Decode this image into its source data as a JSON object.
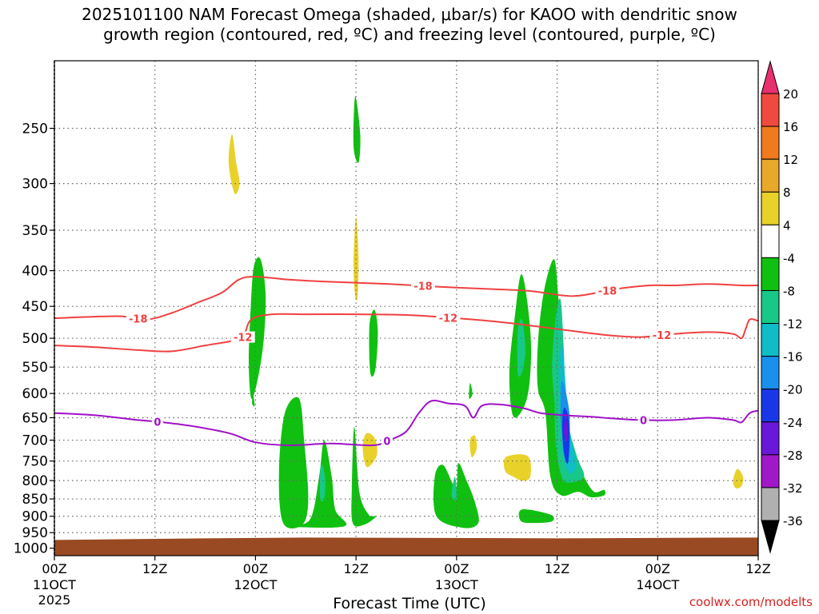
{
  "chart_data": {
    "type": "time-height contour",
    "title_line1": "2025101100 NAM Forecast Omega (shaded, μbar/s) for KAOO with dendritic snow",
    "title_line2": "growth region (contoured, red, ºC) and freezing level (contoured, purple, ºC)",
    "xlabel": "Forecast Time (UTC)",
    "credit": "coolwx.com/modelts",
    "x_ticks": [
      {
        "hour": 0,
        "label": "00Z",
        "date": "11OCT",
        "year": "2025"
      },
      {
        "hour": 12,
        "label": "12Z",
        "date": "",
        "year": ""
      },
      {
        "hour": 24,
        "label": "00Z",
        "date": "12OCT",
        "year": ""
      },
      {
        "hour": 36,
        "label": "12Z",
        "date": "",
        "year": ""
      },
      {
        "hour": 48,
        "label": "00Z",
        "date": "13OCT",
        "year": ""
      },
      {
        "hour": 60,
        "label": "12Z",
        "date": "",
        "year": ""
      },
      {
        "hour": 72,
        "label": "00Z",
        "date": "14OCT",
        "year": ""
      },
      {
        "hour": 84,
        "label": "12Z",
        "date": "",
        "year": ""
      }
    ],
    "x_range": [
      0,
      84
    ],
    "y_levels": [
      250,
      300,
      350,
      400,
      450,
      500,
      550,
      600,
      650,
      700,
      750,
      800,
      850,
      900,
      950,
      1000
    ],
    "y_range_hpa": [
      200,
      1025
    ],
    "ground_level_hpa": 968,
    "colorbar": {
      "labels": [
        "20",
        "16",
        "12",
        "8",
        "4",
        "-4",
        "-8",
        "-12",
        "-16",
        "-20",
        "-24",
        "-28",
        "-32",
        "-36"
      ],
      "colors": [
        "#e8306e",
        "#f04a3e",
        "#f07a1e",
        "#e8a82a",
        "#e8d22a",
        "#ffffff",
        "#10c010",
        "#18c888",
        "#10bcc8",
        "#1890ec",
        "#1838e8",
        "#6818d8",
        "#a018c8",
        "#b0b0b0",
        "#000000"
      ]
    },
    "contours": [
      {
        "name": "-18",
        "color": "#f04040",
        "label_hours": [
          10,
          44,
          66
        ],
        "points": [
          [
            0,
            468
          ],
          [
            4,
            466
          ],
          [
            8,
            465
          ],
          [
            11,
            470
          ],
          [
            14,
            460
          ],
          [
            17,
            445
          ],
          [
            20,
            430
          ],
          [
            22,
            412
          ],
          [
            24,
            408
          ],
          [
            28,
            412
          ],
          [
            33,
            415
          ],
          [
            40,
            418
          ],
          [
            46,
            422
          ],
          [
            52,
            425
          ],
          [
            57,
            428
          ],
          [
            62,
            435
          ],
          [
            67,
            425
          ],
          [
            71,
            420
          ],
          [
            74,
            420
          ],
          [
            78,
            418
          ],
          [
            82,
            420
          ],
          [
            84,
            420
          ]
        ]
      },
      {
        "name": "-12",
        "color": "#f04040",
        "label_hours": [
          22.5,
          47,
          72.5
        ],
        "points": [
          [
            0,
            512
          ],
          [
            5,
            515
          ],
          [
            10,
            520
          ],
          [
            14,
            522
          ],
          [
            18,
            512
          ],
          [
            21,
            505
          ],
          [
            22.5,
            498
          ],
          [
            23.5,
            470
          ],
          [
            26,
            462
          ],
          [
            30,
            462
          ],
          [
            36,
            462
          ],
          [
            42,
            463
          ],
          [
            48,
            468
          ],
          [
            54,
            475
          ],
          [
            60,
            485
          ],
          [
            66,
            495
          ],
          [
            70,
            498
          ],
          [
            74,
            493
          ],
          [
            78,
            490
          ],
          [
            81,
            493
          ],
          [
            82,
            500
          ],
          [
            82.5,
            485
          ],
          [
            83,
            470
          ],
          [
            84,
            472
          ]
        ]
      },
      {
        "name": "0",
        "color": "#a010c8",
        "label_hours": [
          12.3,
          39.7,
          70.3
        ],
        "points": [
          [
            0,
            640
          ],
          [
            5,
            645
          ],
          [
            10,
            655
          ],
          [
            13,
            660
          ],
          [
            17,
            670
          ],
          [
            21,
            685
          ],
          [
            24,
            705
          ],
          [
            28,
            712
          ],
          [
            33,
            708
          ],
          [
            38,
            712
          ],
          [
            40,
            700
          ],
          [
            42,
            680
          ],
          [
            43.5,
            640
          ],
          [
            45,
            615
          ],
          [
            47,
            620
          ],
          [
            49,
            625
          ],
          [
            50,
            650
          ],
          [
            51,
            625
          ],
          [
            53,
            622
          ],
          [
            56,
            630
          ],
          [
            58,
            640
          ],
          [
            61,
            645
          ],
          [
            64,
            648
          ],
          [
            67,
            652
          ],
          [
            70,
            655
          ],
          [
            74,
            655
          ],
          [
            78,
            650
          ],
          [
            81,
            655
          ],
          [
            82,
            660
          ],
          [
            83,
            640
          ],
          [
            84,
            635
          ]
        ]
      }
    ],
    "omega_regions": [
      {
        "value": 4,
        "color": "#e8d22a",
        "points": [
          [
            21.5,
            310
          ],
          [
            20.8,
            280
          ],
          [
            21.2,
            255
          ],
          [
            21.7,
            280
          ],
          [
            22.1,
            300
          ]
        ]
      },
      {
        "value": 4,
        "color": "#e8d22a",
        "points": [
          [
            35.9,
            435
          ],
          [
            35.7,
            390
          ],
          [
            36,
            335
          ],
          [
            36.3,
            380
          ],
          [
            36.2,
            435
          ]
        ]
      },
      {
        "value": 4,
        "color": "#e8d22a",
        "points": [
          [
            37.3,
            765
          ],
          [
            36.8,
            720
          ],
          [
            37.2,
            685
          ],
          [
            38.2,
            695
          ],
          [
            38.5,
            735
          ]
        ]
      },
      {
        "value": 4,
        "color": "#e8d22a",
        "points": [
          [
            49.8,
            740
          ],
          [
            49.6,
            700
          ],
          [
            50.2,
            690
          ],
          [
            50.4,
            720
          ]
        ]
      },
      {
        "value": 4,
        "color": "#e8d22a",
        "points": [
          [
            53.8,
            775
          ],
          [
            53.9,
            740
          ],
          [
            56.5,
            738
          ],
          [
            56.8,
            790
          ],
          [
            55.8,
            800
          ],
          [
            54.8,
            790
          ]
        ]
      },
      {
        "value": 4,
        "color": "#e8d22a",
        "points": [
          [
            81,
            800
          ],
          [
            81.5,
            770
          ],
          [
            82.2,
            790
          ],
          [
            82,
            815
          ],
          [
            81.3,
            820
          ]
        ]
      },
      {
        "value": -8,
        "color": "#10c010",
        "points": [
          [
            35.7,
            265
          ],
          [
            35.9,
            225
          ],
          [
            36.5,
            255
          ],
          [
            36.3,
            280
          ]
        ]
      },
      {
        "value": -8,
        "color": "#10c010",
        "points": [
          [
            23.5,
            610
          ],
          [
            23.2,
            540
          ],
          [
            23.4,
            460
          ],
          [
            23.8,
            395
          ],
          [
            24.6,
            385
          ],
          [
            25.2,
            430
          ],
          [
            25,
            500
          ],
          [
            24.3,
            570
          ]
        ]
      },
      {
        "value": -8,
        "color": "#10c010",
        "points": [
          [
            23.6,
            620
          ],
          [
            23.7,
            600
          ],
          [
            23.9,
            625
          ]
        ]
      },
      {
        "value": -8,
        "color": "#10c010",
        "points": [
          [
            37.7,
            560
          ],
          [
            37.6,
            480
          ],
          [
            38.2,
            455
          ],
          [
            38.6,
            490
          ],
          [
            38.3,
            555
          ]
        ]
      },
      {
        "value": -8,
        "color": "#10c010",
        "points": [
          [
            27.3,
            920
          ],
          [
            26.8,
            780
          ],
          [
            27.5,
            640
          ],
          [
            29.2,
            610
          ],
          [
            29.8,
            700
          ],
          [
            30.3,
            850
          ],
          [
            29.6,
            925
          ]
        ]
      },
      {
        "value": -8,
        "color": "#10c010",
        "points": [
          [
            28,
            930
          ],
          [
            30.5,
            910
          ],
          [
            31.6,
            790
          ],
          [
            32.2,
            700
          ],
          [
            33.1,
            790
          ],
          [
            33.5,
            880
          ],
          [
            34.6,
            930
          ]
        ]
      },
      {
        "value": -8,
        "color": "#10c010",
        "points": [
          [
            35.6,
            920
          ],
          [
            35.5,
            820
          ],
          [
            35.8,
            670
          ],
          [
            36.4,
            830
          ],
          [
            37.5,
            895
          ],
          [
            38.4,
            900
          ],
          [
            37,
            925
          ]
        ]
      },
      {
        "value": -8,
        "color": "#10c010",
        "points": [
          [
            45.6,
            900
          ],
          [
            45.4,
            790
          ],
          [
            46.4,
            760
          ],
          [
            47.9,
            820
          ],
          [
            48.2,
            755
          ],
          [
            49.2,
            800
          ],
          [
            50.2,
            860
          ],
          [
            50.6,
            920
          ],
          [
            48.8,
            935
          ]
        ]
      },
      {
        "value": -8,
        "color": "#10c010",
        "points": [
          [
            54.8,
            648
          ],
          [
            54.3,
            560
          ],
          [
            55,
            460
          ],
          [
            55.7,
            405
          ],
          [
            56.4,
            440
          ],
          [
            56.9,
            520
          ],
          [
            56.4,
            610
          ]
        ]
      },
      {
        "value": -8,
        "color": "#10c010",
        "points": [
          [
            57.7,
            590
          ],
          [
            57.7,
            510
          ],
          [
            58.4,
            430
          ],
          [
            59.6,
            385
          ],
          [
            60.1,
            430
          ],
          [
            60.6,
            530
          ],
          [
            61.1,
            660
          ],
          [
            62,
            735
          ],
          [
            63.2,
            790
          ],
          [
            64.4,
            830
          ],
          [
            65.6,
            825
          ],
          [
            65.6,
            840
          ],
          [
            64,
            845
          ],
          [
            62.5,
            830
          ],
          [
            60.5,
            840
          ],
          [
            59.2,
            790
          ],
          [
            58.6,
            640
          ]
        ]
      },
      {
        "value": -8,
        "color": "#10c010",
        "points": [
          [
            55.7,
            915
          ],
          [
            55.8,
            880
          ],
          [
            59.2,
            895
          ],
          [
            59.4,
            915
          ],
          [
            57.5,
            920
          ]
        ]
      },
      {
        "value": -8,
        "color": "#10c010",
        "points": [
          [
            49.5,
            610
          ],
          [
            49.6,
            580
          ],
          [
            49.9,
            600
          ]
        ]
      },
      {
        "value": -12,
        "color": "#18c888",
        "points": [
          [
            59.8,
            700
          ],
          [
            59.7,
            620
          ],
          [
            59.4,
            550
          ],
          [
            59.8,
            470
          ],
          [
            60.4,
            440
          ],
          [
            60.8,
            520
          ],
          [
            61.1,
            640
          ],
          [
            62.3,
            735
          ],
          [
            63.2,
            790
          ],
          [
            61.2,
            805
          ],
          [
            60.4,
            780
          ]
        ]
      },
      {
        "value": -12,
        "color": "#18c888",
        "points": [
          [
            55.3,
            560
          ],
          [
            55.3,
            490
          ],
          [
            55.8,
            470
          ],
          [
            56.2,
            520
          ],
          [
            55.8,
            560
          ]
        ]
      },
      {
        "value": -12,
        "color": "#18c888",
        "points": [
          [
            31.7,
            845
          ],
          [
            31.8,
            760
          ],
          [
            32.3,
            790
          ],
          [
            32.2,
            850
          ]
        ]
      },
      {
        "value": -12,
        "color": "#18c888",
        "points": [
          [
            47.4,
            840
          ],
          [
            47.8,
            790
          ],
          [
            48,
            850
          ]
        ]
      },
      {
        "value": -16,
        "color": "#10bcc8",
        "points": [
          [
            60.6,
            725
          ],
          [
            60.4,
            640
          ],
          [
            60.2,
            560
          ],
          [
            60.6,
            510
          ],
          [
            61.1,
            600
          ],
          [
            61.6,
            690
          ],
          [
            62.3,
            760
          ],
          [
            61.4,
            780
          ]
        ]
      },
      {
        "value": -20,
        "color": "#1890ec",
        "points": [
          [
            60.5,
            670
          ],
          [
            60.5,
            580
          ],
          [
            61,
            595
          ],
          [
            61.5,
            650
          ],
          [
            61.3,
            725
          ]
        ]
      },
      {
        "value": -24,
        "color": "#1838e8",
        "points": [
          [
            60.6,
            670
          ],
          [
            60.8,
            630
          ],
          [
            61.3,
            645
          ],
          [
            61.5,
            690
          ],
          [
            61.3,
            755
          ],
          [
            60.8,
            730
          ]
        ]
      },
      {
        "value": -28,
        "color": "#6818d8",
        "points": [
          [
            60.8,
            675
          ],
          [
            61.1,
            650
          ],
          [
            61.3,
            690
          ],
          [
            61,
            700
          ]
        ]
      }
    ]
  }
}
